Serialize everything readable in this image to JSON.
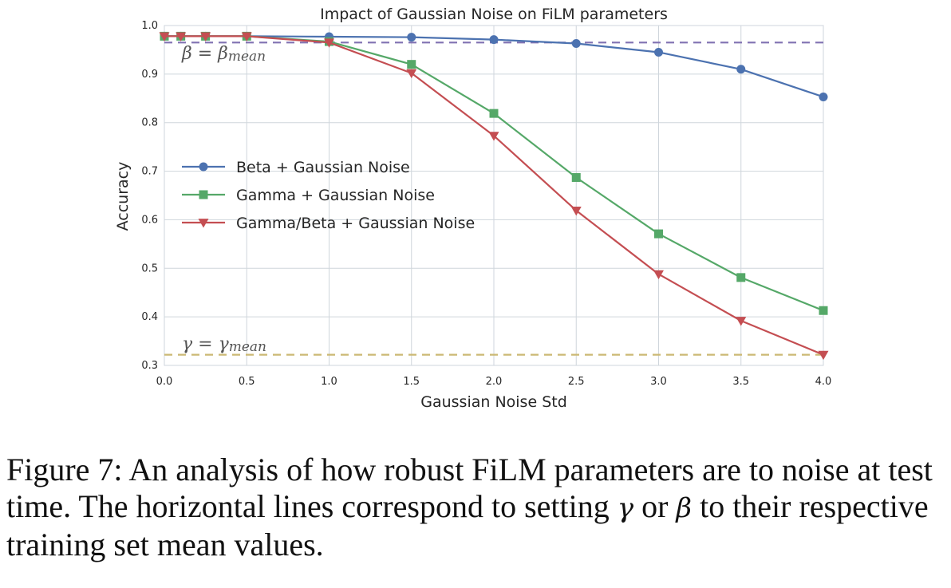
{
  "chart_data": {
    "type": "line",
    "title": "Impact of Gaussian Noise on FiLM parameters",
    "xlabel": "Gaussian Noise Std",
    "ylabel": "Accuracy",
    "xlim": [
      0.0,
      4.0
    ],
    "ylim": [
      0.3,
      1.0
    ],
    "xticks": [
      "0.0",
      "0.5",
      "1.0",
      "1.5",
      "2.0",
      "2.5",
      "3.0",
      "3.5",
      "4.0"
    ],
    "yticks": [
      "0.3",
      "0.4",
      "0.5",
      "0.6",
      "0.7",
      "0.8",
      "0.9",
      "1.0"
    ],
    "grid": true,
    "legend_position": "center-left",
    "series": [
      {
        "name": "Beta + Gaussian Noise",
        "color": "#4c72b0",
        "marker": "circle",
        "x": [
          0.0,
          0.1,
          0.25,
          0.5,
          1.0,
          1.5,
          2.0,
          2.5,
          3.0,
          3.5,
          4.0
        ],
        "y": [
          0.978,
          0.978,
          0.978,
          0.978,
          0.977,
          0.976,
          0.971,
          0.963,
          0.945,
          0.91,
          0.853
        ]
      },
      {
        "name": "Gamma + Gaussian Noise",
        "color": "#55a868",
        "marker": "square",
        "x": [
          0.0,
          0.1,
          0.25,
          0.5,
          1.0,
          1.5,
          2.0,
          2.5,
          3.0,
          3.5,
          4.0
        ],
        "y": [
          0.978,
          0.978,
          0.978,
          0.978,
          0.967,
          0.92,
          0.819,
          0.687,
          0.571,
          0.481,
          0.413
        ]
      },
      {
        "name": "Gamma/Beta + Gaussian Noise",
        "color": "#c44e52",
        "marker": "triangle-down",
        "x": [
          0.0,
          0.1,
          0.25,
          0.5,
          1.0,
          1.5,
          2.0,
          2.5,
          3.0,
          3.5,
          4.0
        ],
        "y": [
          0.978,
          0.978,
          0.978,
          0.978,
          0.965,
          0.902,
          0.773,
          0.619,
          0.488,
          0.392,
          0.322
        ]
      }
    ],
    "reference_lines": [
      {
        "label": "β = β",
        "label_sub": "mean",
        "y": 0.965,
        "color": "#8172b2",
        "style": "dashed"
      },
      {
        "label": "γ = γ",
        "label_sub": "mean",
        "y": 0.322,
        "color": "#ccb974",
        "style": "dashed"
      }
    ]
  },
  "caption": {
    "prefix": "Figure 7:  An analysis of how robust FiLM parameters are to noise at test time. The horizontal lines correspond to setting ",
    "gamma": "γ",
    "or_text": " or ",
    "beta": "β",
    "suffix": " to their respective training set mean values."
  }
}
